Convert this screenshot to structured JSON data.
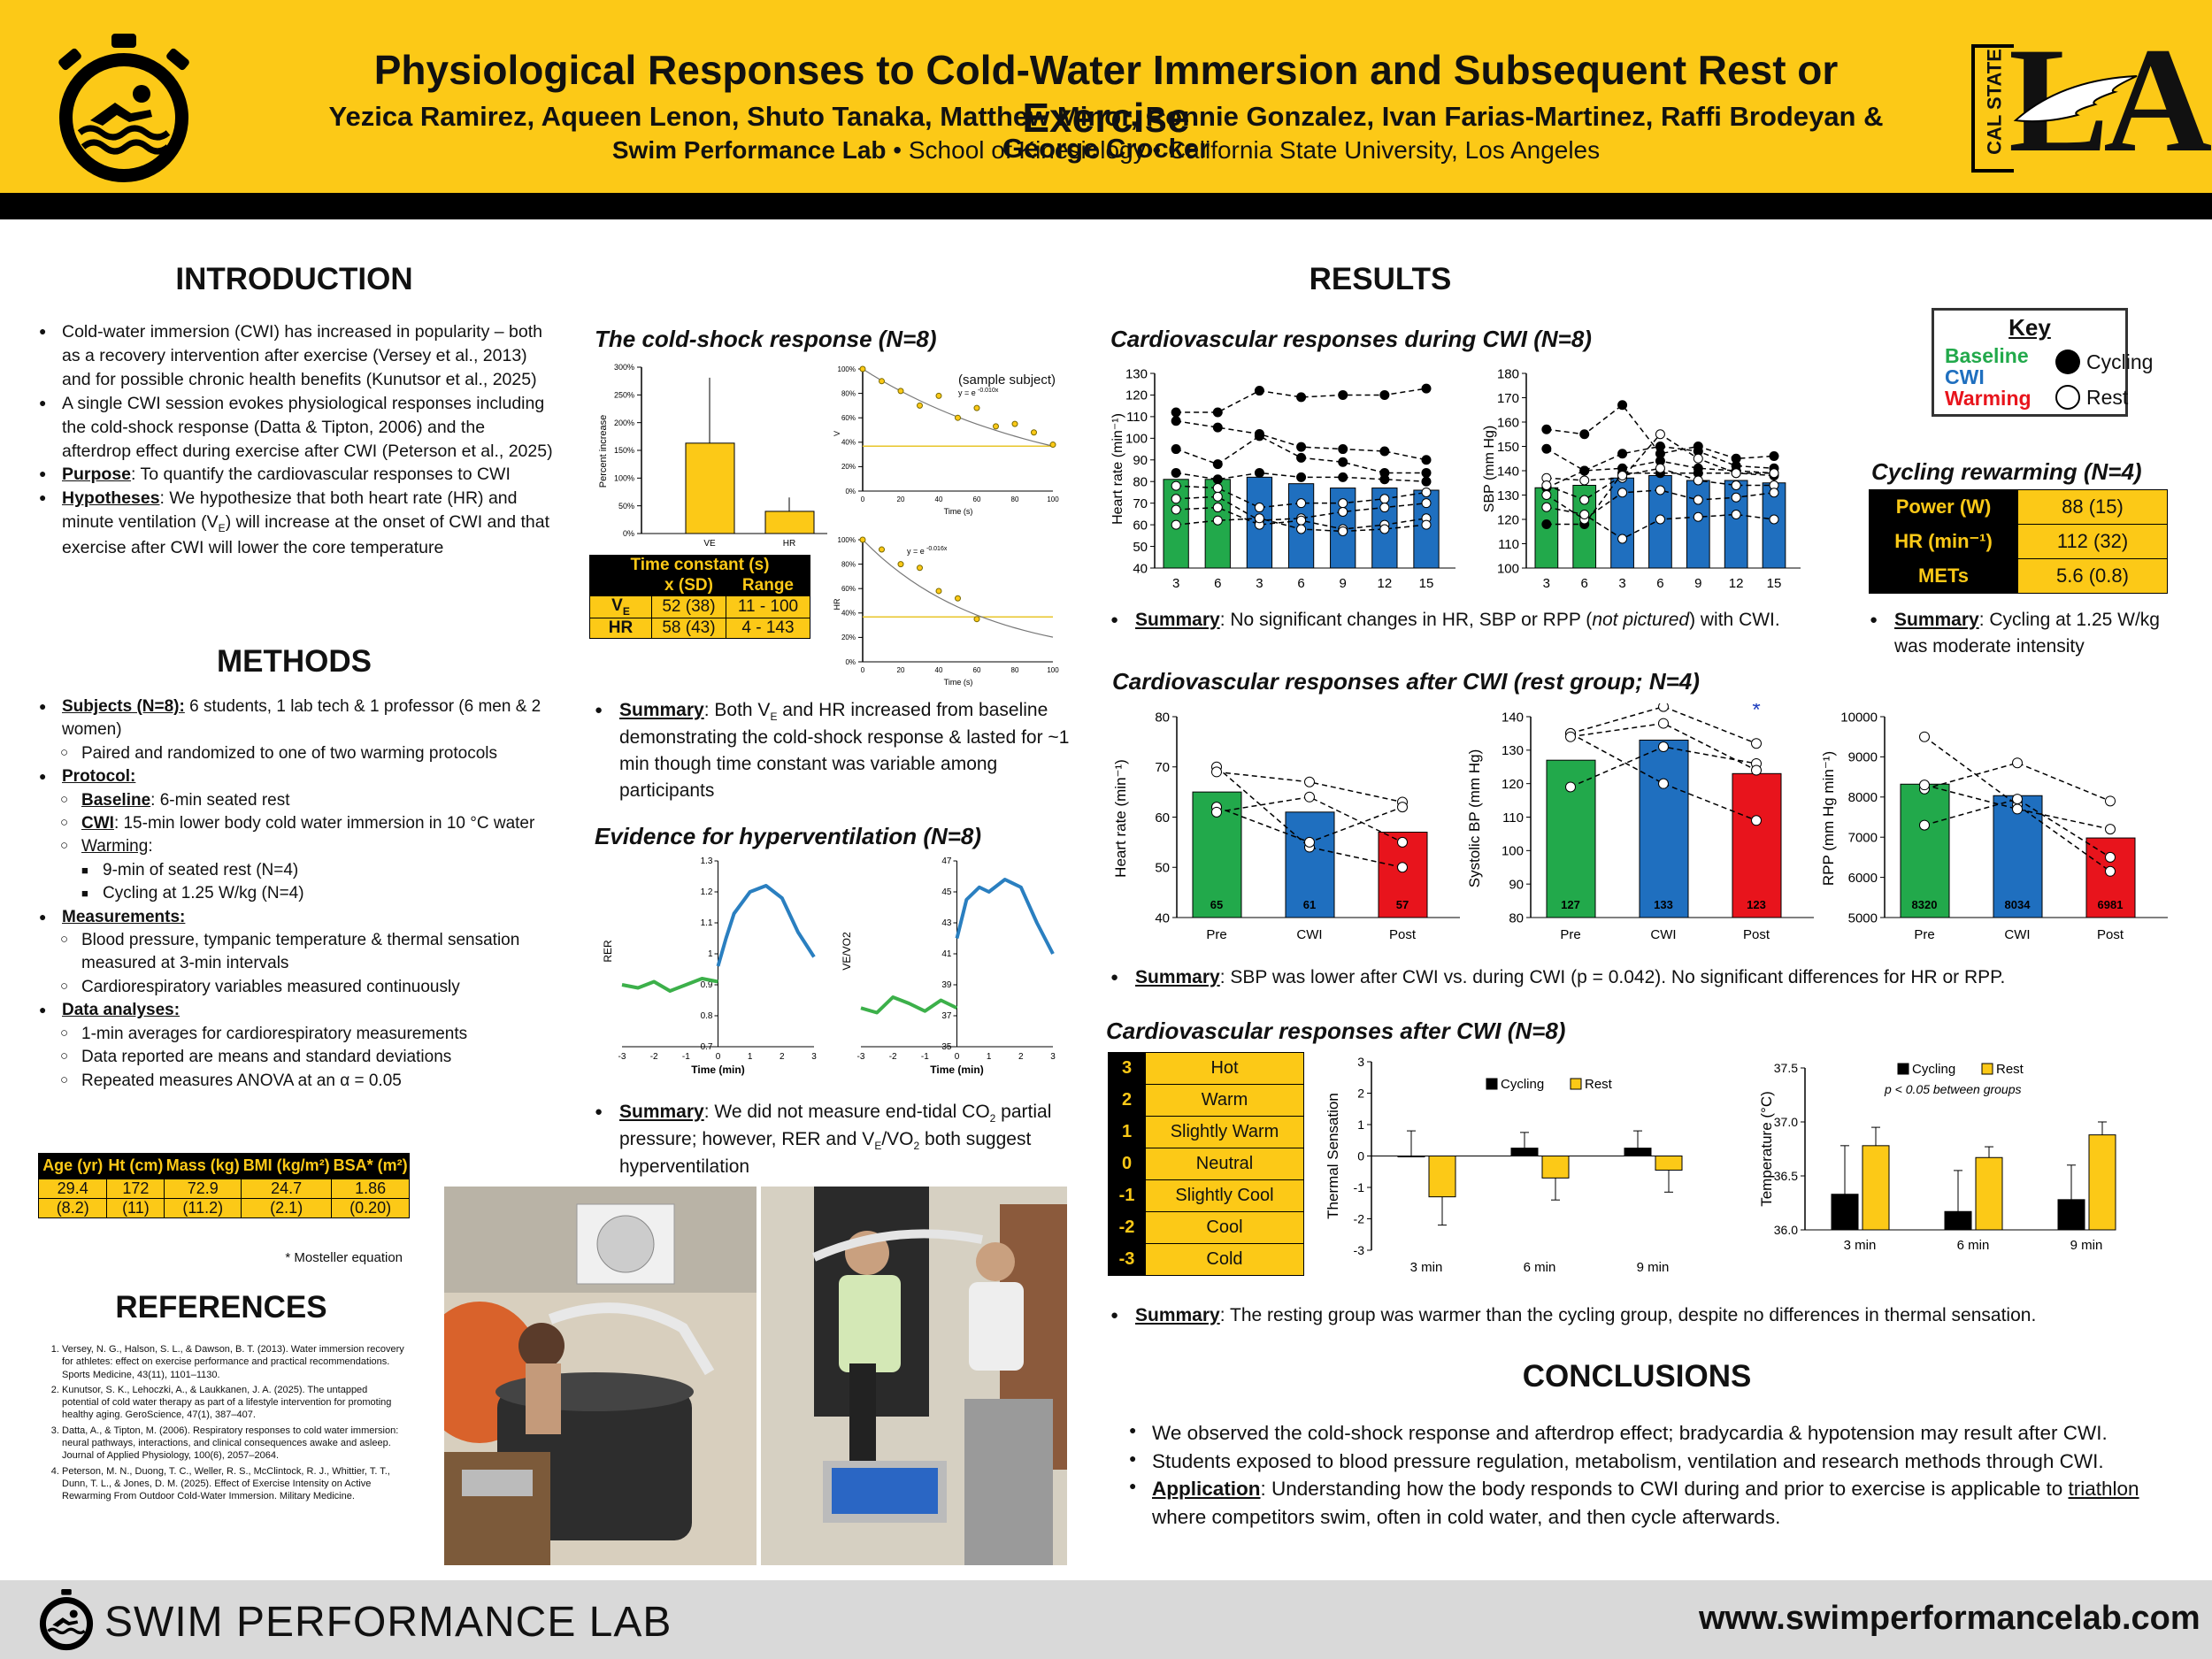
{
  "header": {
    "title": "Physiological Responses to Cold-Water Immersion and Subsequent Rest or Exercise",
    "authors": "Yezica Ramirez, Aqueen Lenon, Shuto Tanaka, Matthew Minor, Ronnie Gonzalez, Ivan Farias-Martinez, Raffi Brodeyan & George Crocker",
    "lab": "Swim Performance Lab",
    "affiliation": " • School of Kinesiology • California State University, Los Angeles",
    "logo_right_small": "CAL STATE",
    "logo_right_big": "LA"
  },
  "intro": {
    "heading": "INTRODUCTION",
    "b1": "Cold-water immersion (CWI) has increased in popularity – both as a recovery intervention after exercise (Versey et al., 2013) and for possible chronic health benefits (Kunutsor et al., 2025)",
    "b2": "A single CWI session evokes physiological responses including the cold-shock response (Datta & Tipton, 2006) and the afterdrop effect during exercise after CWI (Peterson et al., 2025)",
    "purpose_label": "Purpose",
    "purpose": ": To quantify the cardiovascular responses to CWI",
    "hyp_label": "Hypotheses",
    "hyp_a": ": We hypothesize that both heart rate (HR) and minute ventilation (V",
    "hyp_sub": "E",
    "hyp_b": ") will increase at the onset of CWI and that exercise after CWI will lower the core temperature"
  },
  "methods": {
    "heading": "METHODS",
    "subjects_label": "Subjects (N=8):",
    "subjects": " 6 students, 1 lab tech & 1 professor (6 men & 2 women)",
    "paired": "Paired and randomized to one of two warming protocols",
    "protocol_label": "Protocol:",
    "baseline_label": "Baseline",
    "baseline": ": 6-min seated rest",
    "cwi_label": "CWI",
    "cwi": ": 15-min lower body cold water immersion in 10 °C water",
    "warming_label": "Warming",
    "warming": ":",
    "rest": "9-min of seated rest (N=4)",
    "cycling": "Cycling at 1.25 W/kg (N=4)",
    "meas_label": "Measurements:",
    "meas1": "Blood pressure, tympanic temperature & thermal sensation measured at 3-min intervals",
    "meas2": "Cardiorespiratory variables measured continuously",
    "data_label": "Data analyses:",
    "da1": "1-min averages for cardiorespiratory measurements",
    "da2": "Data reported are means and standard deviations",
    "da3": "Repeated measures ANOVA at an α = 0.05"
  },
  "demo_table": {
    "headers": [
      "Age (yr)",
      "Ht (cm)",
      "Mass (kg)",
      "BMI (kg/m²)",
      "BSA* (m²)"
    ],
    "means": [
      "29.4",
      "172",
      "72.9",
      "24.7",
      "1.86"
    ],
    "sds": [
      "(8.2)",
      "(11)",
      "(11.2)",
      "(2.1)",
      "(0.20)"
    ],
    "note": "* Mosteller equation"
  },
  "references": {
    "heading": "REFERENCES",
    "items": [
      "Versey, N. G., Halson, S. L., & Dawson, B. T. (2013). Water immersion recovery for athletes: effect on exercise performance and practical recommendations. Sports Medicine, 43(11), 1101–1130.",
      "Kunutsor, S. K., Lehoczki, A., & Laukkanen, J. A. (2025). The untapped potential of cold water therapy as part of a lifestyle intervention for promoting healthy aging. GeroScience, 47(1), 387–407.",
      "Datta, A., & Tipton, M. (2006). Respiratory responses to cold water immersion: neural pathways, interactions, and clinical consequences awake and asleep. Journal of Applied Physiology, 100(6), 2057–2064.",
      "Peterson, M. N., Duong, T. C., Weller, R. S., McClintock, R. J., Whittier, T. T., Dunn, T. L., & Jones, D. M. (2025). Effect of Exercise Intensity on Active Rewarming From Outdoor Cold-Water Immersion. Military Medicine."
    ]
  },
  "coldshock": {
    "title": "The cold-shock response (N=8)",
    "sample": "(sample subject)",
    "eq_ve": "y = e",
    "eq_ve_exp": "-0.010x",
    "eq_hr": "y = e",
    "eq_hr_exp": "-0.016x",
    "tc_title": "Time constant (s)",
    "tc_h1": "x (SD)",
    "tc_h2": "Range",
    "rows": [
      {
        "label": "V",
        "sub": "E",
        "sd": "52 (38)",
        "range": "11 - 100"
      },
      {
        "label": "HR",
        "sub": "",
        "sd": "58 (43)",
        "range": "4 - 143"
      }
    ],
    "summary_label": "Summary",
    "summary_a": ": Both V",
    "summary_sub": "E",
    "summary_b": " and HR increased from baseline demonstrating the cold-shock response & lasted for ~1 min though time constant was variable among participants"
  },
  "hypervent": {
    "title": "Evidence for hyperventilation (N=8)",
    "summary_label": "Summary",
    "summary_a": ": We did not measure end-tidal CO",
    "summary_sub": "2",
    "summary_b": " partial pressure; however, RER and V",
    "summary_sub2": "E",
    "summary_c": "/VO",
    "summary_sub3": "2",
    "summary_d": " both suggest hyperventilation"
  },
  "results": {
    "heading": "RESULTS",
    "cv_cwi_title": "Cardiovascular responses during CWI (N=8)",
    "cv_cwi_summary_label": "Summary",
    "cv_cwi_summary_a": ": No significant changes in HR, SBP or RPP (",
    "cv_cwi_summary_i": "not pictured",
    "cv_cwi_summary_b": ") with CWI.",
    "rest_title": "Cardiovascular responses after CWI (rest group; N=4)",
    "rest_summary_label": "Summary",
    "rest_summary": ": SBP was lower after CWI vs. during CWI (p = 0.042). No significant differences for HR or RPP.",
    "after_title": "Cardiovascular responses after CWI (N=8)",
    "after_summary_label": "Summary",
    "after_summary": ": The resting group was warmer than the cycling group, despite no differences in thermal sensation."
  },
  "key": {
    "title": "Key",
    "baseline": "Baseline",
    "cwi": "CWI",
    "warming": "Warming",
    "cycling": "Cycling",
    "rest": "Rest",
    "colors": {
      "baseline": "#22a94b",
      "cwi": "#1f6fbf",
      "warming": "#e8141c"
    }
  },
  "rewarming": {
    "title": "Cycling rewarming (N=4)",
    "rows": [
      {
        "label": "Power (W)",
        "value": "88 (15)"
      },
      {
        "label": "HR (min⁻¹)",
        "value": "112 (32)"
      },
      {
        "label": "METs",
        "value": "5.6 (0.8)"
      }
    ],
    "summary_label": "Summary",
    "summary": ": Cycling at 1.25 W/kg was moderate intensity"
  },
  "sensation_scale": [
    {
      "n": "3",
      "label": "Hot"
    },
    {
      "n": "2",
      "label": "Warm"
    },
    {
      "n": "1",
      "label": "Slightly Warm"
    },
    {
      "n": "0",
      "label": "Neutral"
    },
    {
      "n": "-1",
      "label": "Slightly Cool"
    },
    {
      "n": "-2",
      "label": "Cool"
    },
    {
      "n": "-3",
      "label": "Cold"
    }
  ],
  "conclusions": {
    "heading": "CONCLUSIONS",
    "c1": "We observed the cold-shock response and afterdrop effect; bradycardia & hypotension may result after CWI.",
    "c2": "Students exposed to blood pressure regulation, metabolism, ventilation and research methods through CWI.",
    "app_label": "Application",
    "app_a": ": Understanding how the body responds to CWI during and prior to exercise is applicable to ",
    "app_u": "triathlon",
    "app_b": " where competitors swim, often in cold water, and then cycle afterwards."
  },
  "footer": {
    "lab": "SWIM PERFORMANCE LAB",
    "url": "www.swimperformancelab.com"
  },
  "chart_data": [
    {
      "type": "bar",
      "id": "cs_pct",
      "categories": [
        "VE",
        "HR"
      ],
      "values": [
        163,
        40
      ],
      "errors": [
        118,
        25
      ],
      "ylabel": "Percent increase",
      "ylim": [
        0,
        300
      ],
      "ticks": [
        "0%",
        "50%",
        "100%",
        "150%",
        "200%",
        "250%",
        "300%"
      ]
    },
    {
      "type": "scatter",
      "id": "ve_decay",
      "ylabel": "V",
      "xlabel": "Time (s)",
      "x": [
        0,
        10,
        20,
        30,
        40,
        50,
        60,
        70,
        80,
        90,
        100
      ],
      "y": [
        100,
        90,
        82,
        70,
        78,
        60,
        68,
        53,
        55,
        48,
        38
      ],
      "ylim": [
        0,
        100
      ],
      "xlim": [
        0,
        100
      ]
    },
    {
      "type": "scatter",
      "id": "hr_decay",
      "ylabel": "HR",
      "xlabel": "Time (s)",
      "x": [
        0,
        10,
        20,
        30,
        40,
        50,
        60
      ],
      "y": [
        100,
        92,
        80,
        77,
        58,
        52,
        35
      ],
      "ylim": [
        0,
        100
      ],
      "xlim": [
        0,
        100
      ]
    },
    {
      "type": "line",
      "id": "rer",
      "ylabel": "RER",
      "xlabel": "Time (min)",
      "xlim": [
        -3,
        3
      ],
      "ylim": [
        0.7,
        1.3
      ],
      "series": [
        {
          "x": [
            -3,
            -2.5,
            -2,
            -1.5,
            -1,
            -0.5,
            0
          ],
          "y": [
            0.9,
            0.89,
            0.91,
            0.88,
            0.9,
            0.92,
            0.91
          ]
        },
        {
          "x": [
            0,
            0.25,
            0.5,
            1,
            1.5,
            2,
            2.5,
            3
          ],
          "y": [
            0.96,
            1.05,
            1.13,
            1.2,
            1.22,
            1.18,
            1.07,
            0.99
          ]
        }
      ]
    },
    {
      "type": "line",
      "id": "vevo2",
      "ylabel": "VE/VO2",
      "xlabel": "Time (min)",
      "xlim": [
        -3,
        3
      ],
      "ylim": [
        35,
        47
      ],
      "series": [
        {
          "x": [
            -3,
            -2.5,
            -2,
            -1.5,
            -1,
            -0.5,
            0
          ],
          "y": [
            37.5,
            37.2,
            38.2,
            37.8,
            37.3,
            38,
            37.5
          ]
        },
        {
          "x": [
            0,
            0.3,
            0.7,
            1,
            1.5,
            2,
            2.5,
            3
          ],
          "y": [
            42,
            44.5,
            45.3,
            45,
            45.8,
            45.3,
            43,
            41
          ]
        }
      ]
    },
    {
      "type": "bar",
      "id": "hr_cwi",
      "ylabel": "Heart rate (min⁻¹)",
      "ylim": [
        40,
        130
      ],
      "categories": [
        "3",
        "6",
        "3",
        "6",
        "9",
        "12",
        "15"
      ],
      "values": [
        81,
        81,
        82,
        79,
        77,
        77,
        76
      ]
    },
    {
      "type": "bar",
      "id": "sbp_cwi",
      "ylabel": "SBP (mm Hg)",
      "ylim": [
        100,
        180
      ],
      "categories": [
        "3",
        "6",
        "3",
        "6",
        "9",
        "12",
        "15"
      ],
      "values": [
        133,
        134,
        137,
        138,
        136,
        136,
        135
      ]
    },
    {
      "type": "bar",
      "id": "rest_hr",
      "ylabel": "Heart rate (min⁻¹)",
      "ylim": [
        40,
        80
      ],
      "categories": [
        "Pre",
        "CWI",
        "Post"
      ],
      "values": [
        65,
        61,
        57
      ]
    },
    {
      "type": "bar",
      "id": "rest_sbp",
      "ylabel": "Systolic BP (mm Hg)",
      "ylim": [
        80,
        140
      ],
      "categories": [
        "Pre",
        "CWI",
        "Post"
      ],
      "values": [
        127,
        133,
        123
      ]
    },
    {
      "type": "bar",
      "id": "rest_rpp",
      "ylabel": "RPP (mm Hg min⁻¹)",
      "ylim": [
        5000,
        10000
      ],
      "categories": [
        "Pre",
        "CWI",
        "Post"
      ],
      "values": [
        8320,
        8034,
        6981
      ]
    },
    {
      "type": "bar",
      "id": "sensation",
      "ylabel": "Thermal Sensation",
      "ylim": [
        -3,
        3
      ],
      "categories": [
        "3 min",
        "6 min",
        "9 min"
      ],
      "series": [
        {
          "name": "Cycling",
          "values": [
            0,
            0.25,
            0.25
          ],
          "errors": [
            0.8,
            0.5,
            0.55
          ]
        },
        {
          "name": "Rest",
          "values": [
            -1.3,
            -0.7,
            -0.45
          ],
          "errors": [
            0.9,
            0.7,
            0.7
          ]
        }
      ]
    },
    {
      "type": "bar",
      "id": "temp",
      "ylabel": "Temperature (°C)",
      "ylim": [
        36.0,
        37.5
      ],
      "note": "p < 0.05 between groups",
      "categories": [
        "3 min",
        "6 min",
        "9 min"
      ],
      "series": [
        {
          "name": "Cycling",
          "values": [
            36.33,
            36.17,
            36.28
          ],
          "errors": [
            0.45,
            0.38,
            0.32
          ]
        },
        {
          "name": "Rest",
          "values": [
            36.78,
            36.67,
            36.88
          ],
          "errors": [
            0.17,
            0.1,
            0.12
          ]
        }
      ]
    }
  ]
}
